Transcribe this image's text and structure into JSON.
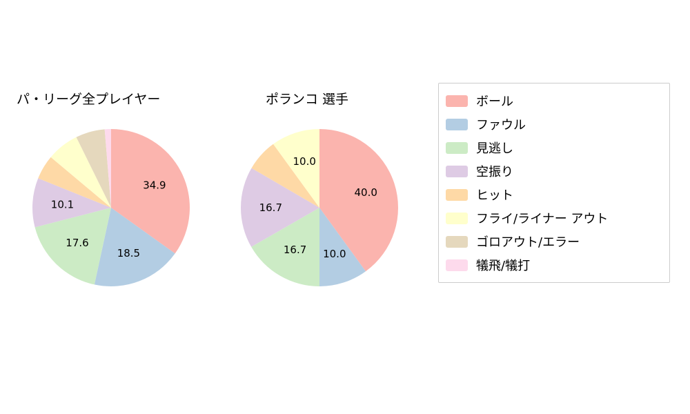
{
  "palette": [
    "#fbb4ae",
    "#b3cde3",
    "#ccebc5",
    "#decbe4",
    "#fed9a6",
    "#ffffcc",
    "#e5d8bd",
    "#fddaec"
  ],
  "chart_data": [
    {
      "type": "pie",
      "title": "パ・リーグ全プレイヤー",
      "labels": [
        "ボール",
        "ファウル",
        "見逃し",
        "空振り",
        "ヒット",
        "フライ/ライナー アウト",
        "ゴロアウト/エラー",
        "犠飛/犠打"
      ],
      "values": [
        34.9,
        18.5,
        17.6,
        10.1,
        5.0,
        6.6,
        6.0,
        1.3
      ],
      "visible_value_labels": [
        "34.9",
        "18.5",
        "17.6",
        "10.1"
      ],
      "label_threshold": 10,
      "start_angle_deg": 90,
      "clockwise": true,
      "legend_position": "right-box"
    },
    {
      "type": "pie",
      "title": "ポランコ  選手",
      "labels": [
        "ボール",
        "ファウル",
        "見逃し",
        "空振り",
        "ヒット",
        "フライ/ライナー アウト",
        "ゴロアウト/エラー",
        "犠飛/犠打"
      ],
      "values": [
        40.0,
        10.0,
        16.7,
        16.7,
        6.6,
        10.0,
        0,
        0
      ],
      "visible_value_labels": [
        "40.0",
        "10.0",
        "16.7",
        "16.7",
        "10.0"
      ],
      "label_threshold": 10,
      "start_angle_deg": 90,
      "clockwise": true,
      "legend_position": "right-box"
    }
  ],
  "legend": {
    "items": [
      {
        "label": "ボール"
      },
      {
        "label": "ファウル"
      },
      {
        "label": "見逃し"
      },
      {
        "label": "空振り"
      },
      {
        "label": "ヒット"
      },
      {
        "label": "フライ/ライナー アウト"
      },
      {
        "label": "ゴロアウト/エラー"
      },
      {
        "label": "犠飛/犠打"
      }
    ]
  }
}
